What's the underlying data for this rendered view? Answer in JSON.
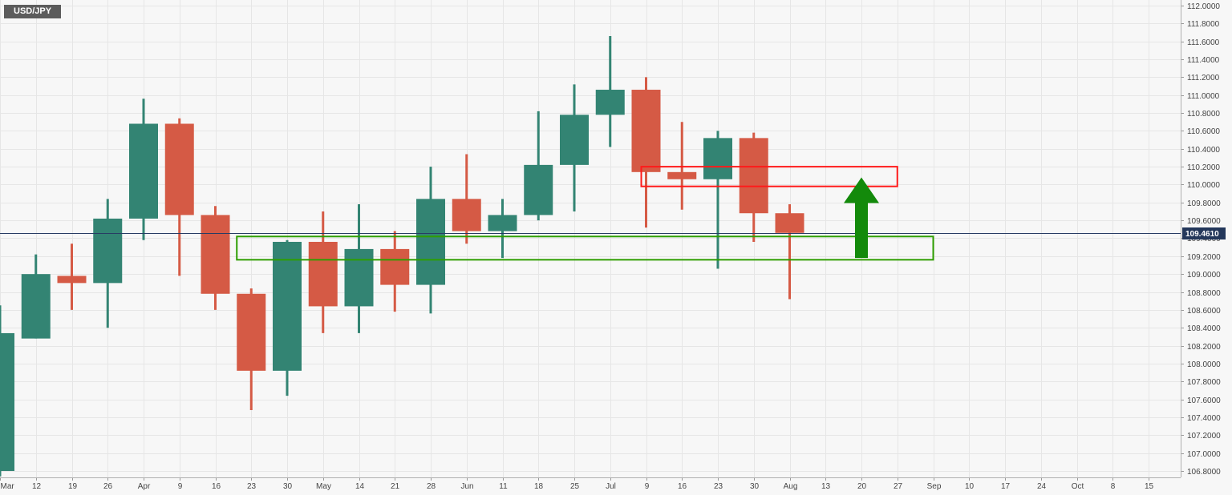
{
  "symbol": "USD/JPY",
  "chart_data": {
    "type": "candlestick",
    "title": "USD/JPY",
    "timeframe": "weekly",
    "y_range": [
      106.74,
      112.04
    ],
    "y_ticks": [
      "112.0000",
      "111.8000",
      "111.6000",
      "111.4000",
      "111.2000",
      "111.0000",
      "110.8000",
      "110.6000",
      "110.4000",
      "110.2000",
      "110.0000",
      "109.8000",
      "109.6000",
      "109.4000",
      "109.2000",
      "109.0000",
      "108.8000",
      "108.6000",
      "108.4000",
      "108.2000",
      "108.0000",
      "107.8000",
      "107.6000",
      "107.4000",
      "107.2000",
      "107.0000",
      "106.8000"
    ],
    "x_ticks": [
      "Mar",
      "12",
      "19",
      "26",
      "Apr",
      "9",
      "16",
      "23",
      "30",
      "May",
      "14",
      "21",
      "28",
      "Jun",
      "11",
      "18",
      "25",
      "Jul",
      "9",
      "16",
      "23",
      "30",
      "Aug",
      "13",
      "20",
      "27",
      "Sep",
      "10",
      "17",
      "24",
      "Oct",
      "8",
      "15"
    ],
    "current_price": 109.461,
    "current_price_label": "109.4610",
    "colors": {
      "up": "#338473",
      "down": "#d55a45",
      "red_box": "#ff1a1a",
      "green_box": "#2e9e00",
      "arrow": "#138a0b",
      "price_line": "#283c64",
      "price_tag": "#23375a",
      "grid": "#e6e6e6"
    },
    "candles": [
      {
        "week": "Mar 5",
        "open": 106.8,
        "high": 108.65,
        "low": 106.74,
        "close": 108.34
      },
      {
        "week": "Mar 12",
        "open": 108.28,
        "high": 109.22,
        "low": 108.28,
        "close": 109.0
      },
      {
        "week": "Mar 19",
        "open": 108.98,
        "high": 109.34,
        "low": 108.6,
        "close": 108.9
      },
      {
        "week": "Mar 26",
        "open": 108.9,
        "high": 109.84,
        "low": 108.4,
        "close": 109.62
      },
      {
        "week": "Apr 2",
        "open": 109.62,
        "high": 110.96,
        "low": 109.38,
        "close": 110.68
      },
      {
        "week": "Apr 9",
        "open": 110.68,
        "high": 110.74,
        "low": 108.98,
        "close": 109.66
      },
      {
        "week": "Apr 16",
        "open": 109.66,
        "high": 109.76,
        "low": 108.6,
        "close": 108.78
      },
      {
        "week": "Apr 23",
        "open": 108.78,
        "high": 108.84,
        "low": 107.48,
        "close": 107.92
      },
      {
        "week": "Apr 30",
        "open": 107.92,
        "high": 109.38,
        "low": 107.64,
        "close": 109.36
      },
      {
        "week": "May 7",
        "open": 109.36,
        "high": 109.7,
        "low": 108.34,
        "close": 108.64
      },
      {
        "week": "May 14",
        "open": 108.64,
        "high": 109.78,
        "low": 108.34,
        "close": 109.28
      },
      {
        "week": "May 21",
        "open": 109.28,
        "high": 109.48,
        "low": 108.58,
        "close": 108.88
      },
      {
        "week": "May 28",
        "open": 108.88,
        "high": 110.2,
        "low": 108.56,
        "close": 109.84
      },
      {
        "week": "Jun 4",
        "open": 109.84,
        "high": 110.34,
        "low": 109.34,
        "close": 109.48
      },
      {
        "week": "Jun 11",
        "open": 109.48,
        "high": 109.84,
        "low": 109.18,
        "close": 109.66
      },
      {
        "week": "Jun 18",
        "open": 109.66,
        "high": 110.82,
        "low": 109.6,
        "close": 110.22
      },
      {
        "week": "Jun 25",
        "open": 110.22,
        "high": 111.12,
        "low": 109.7,
        "close": 110.78
      },
      {
        "week": "Jul 2",
        "open": 110.78,
        "high": 111.66,
        "low": 110.42,
        "close": 111.06
      },
      {
        "week": "Jul 9",
        "open": 111.06,
        "high": 111.2,
        "low": 109.52,
        "close": 110.14
      },
      {
        "week": "Jul 16",
        "open": 110.14,
        "high": 110.7,
        "low": 109.72,
        "close": 110.06
      },
      {
        "week": "Jul 23",
        "open": 110.06,
        "high": 110.6,
        "low": 109.06,
        "close": 110.52
      },
      {
        "week": "Jul 30",
        "open": 110.52,
        "high": 110.58,
        "low": 109.36,
        "close": 109.68
      },
      {
        "week": "Aug 6",
        "open": 109.68,
        "high": 109.78,
        "low": 108.72,
        "close": 109.46
      }
    ],
    "annotations": [
      {
        "type": "rectangle",
        "role": "resistance-zone",
        "color": "red",
        "from_week": "Jul 9",
        "to_week": "Aug 27",
        "top": 110.2,
        "bottom": 109.98
      },
      {
        "type": "rectangle",
        "role": "support-zone",
        "color": "green",
        "from_week": "Apr 23",
        "to_week": "Sep 3",
        "top": 109.42,
        "bottom": 109.16
      },
      {
        "type": "arrow",
        "direction": "up",
        "color": "green",
        "week": "Aug 20",
        "from": 109.18,
        "to": 110.08
      }
    ]
  }
}
